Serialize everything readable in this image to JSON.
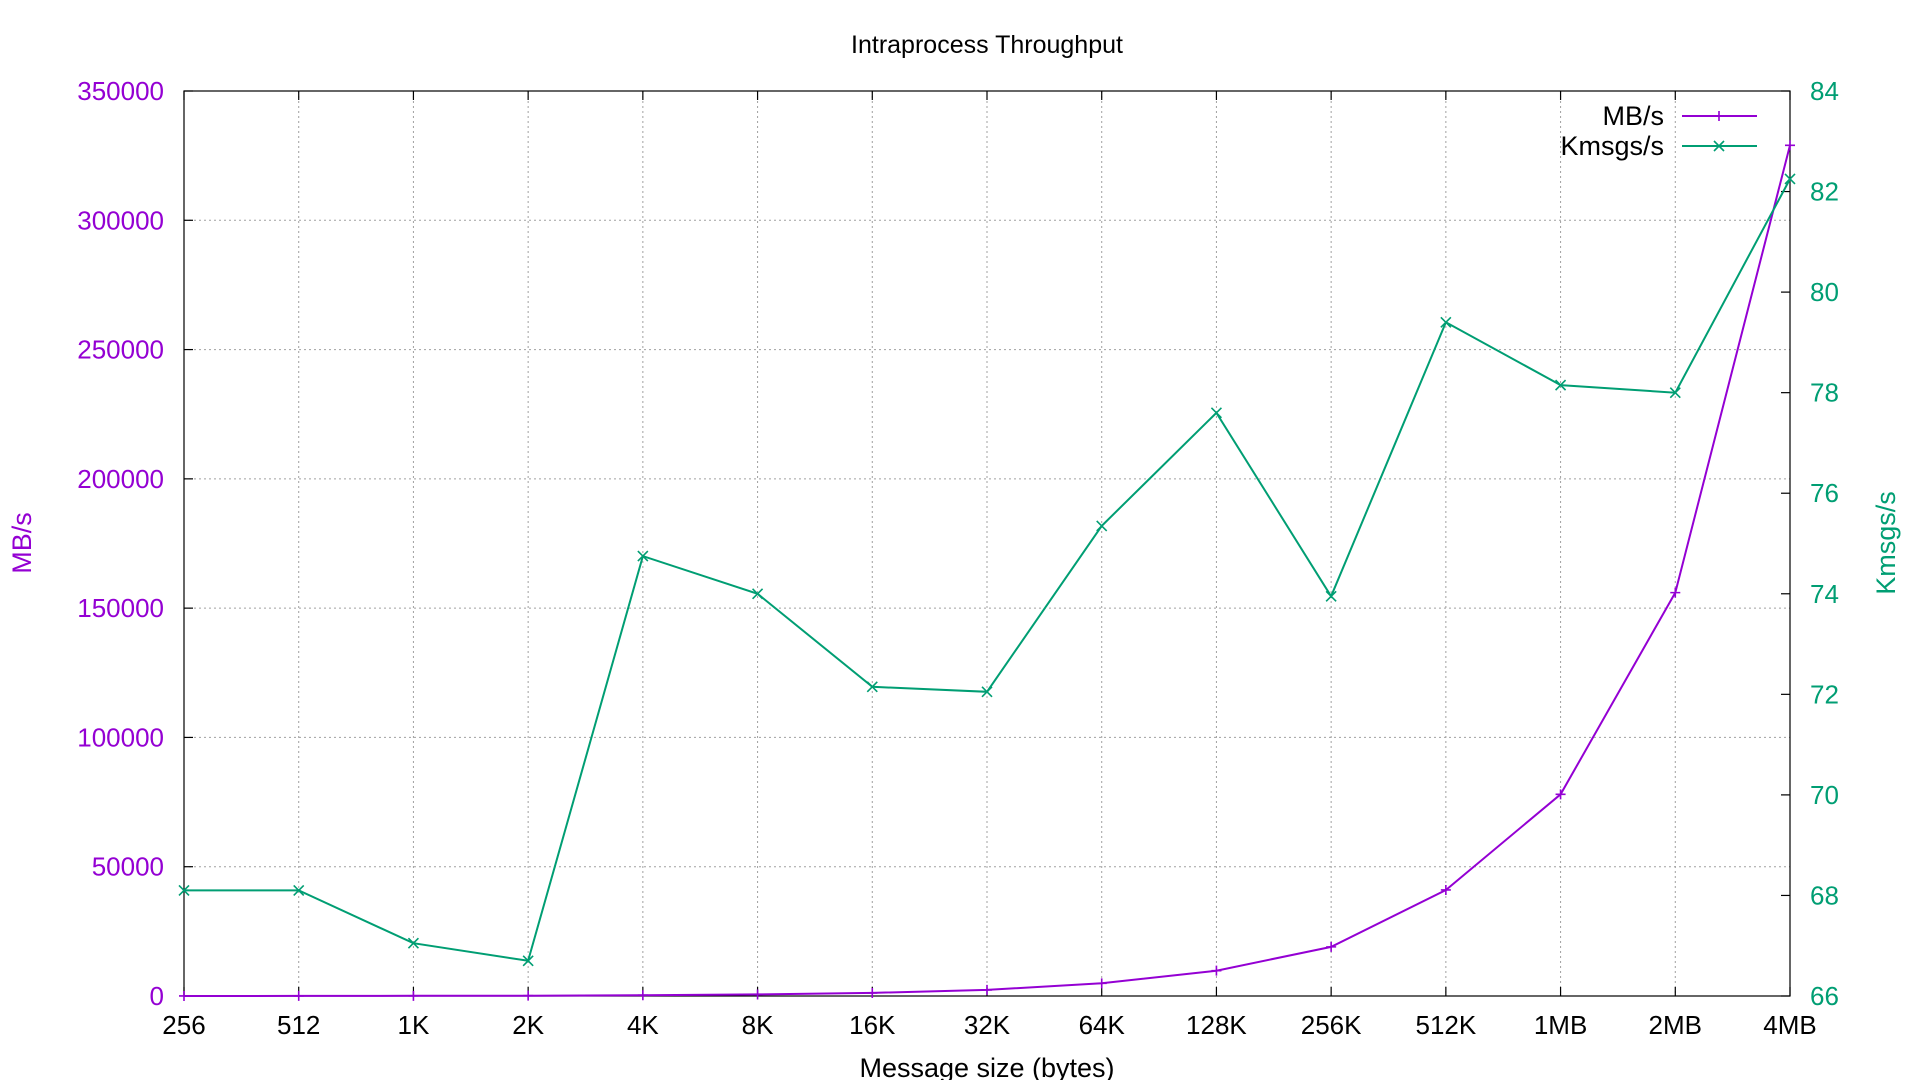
{
  "chart_data": {
    "type": "line",
    "title": "Intraprocess Throughput",
    "xlabel": "Message size (bytes)",
    "ylabel": "MB/s",
    "y2label": "Kmsgs/s",
    "categories": [
      "256",
      "512",
      "1K",
      "2K",
      "4K",
      "8K",
      "16K",
      "32K",
      "64K",
      "128K",
      "256K",
      "512K",
      "1MB",
      "2MB",
      "4MB"
    ],
    "ylim": [
      0,
      350000
    ],
    "y2lim": [
      66,
      84
    ],
    "yticks": [
      "0",
      "50000",
      "100000",
      "150000",
      "200000",
      "250000",
      "300000",
      "350000"
    ],
    "y2ticks": [
      "66",
      "68",
      "70",
      "72",
      "74",
      "76",
      "78",
      "80",
      "82",
      "84"
    ],
    "grid": true,
    "legend_position": "top-right",
    "series": [
      {
        "name": "MB/s",
        "axis": "left",
        "color": "#9400d3",
        "marker": "plus",
        "values": [
          17,
          35,
          67,
          134,
          300,
          600,
          1180,
          2350,
          4900,
          9800,
          19000,
          41000,
          78000,
          156000,
          329000
        ]
      },
      {
        "name": "Kmsgs/s",
        "axis": "right",
        "color": "#009e73",
        "marker": "cross",
        "values": [
          68.1,
          68.1,
          67.05,
          66.7,
          74.75,
          74.0,
          72.15,
          72.05,
          75.35,
          77.6,
          73.95,
          79.4,
          78.15,
          78.0,
          82.25
        ]
      }
    ]
  }
}
